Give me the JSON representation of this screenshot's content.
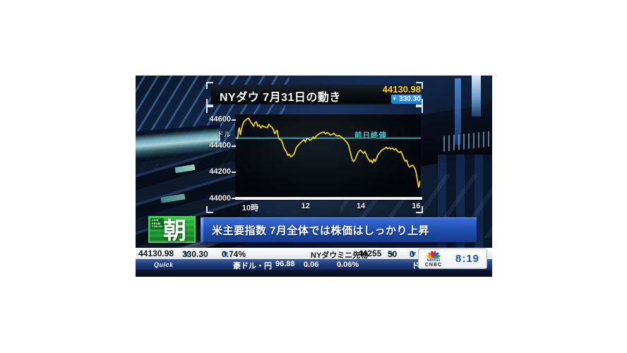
{
  "header": {
    "title": "NYダウ 7月31日の動き",
    "price": "44130.98",
    "change_value": "330.30",
    "change_dir": "down"
  },
  "icons": {
    "down": "▼",
    "up": "▲"
  },
  "chart": {
    "y_unit": "ドル",
    "prev_close_label": "前日終値"
  },
  "chart_data": {
    "type": "line",
    "title": "NYダウ 7月31日の動き",
    "ylabel": "ドル",
    "xlim": [
      9.45,
      16.17
    ],
    "ylim": [
      44000,
      44643
    ],
    "y_tick_values": [
      44600,
      44400,
      44200,
      44000
    ],
    "y_tick_labels": [
      "44600",
      "44400",
      "44200",
      "44000"
    ],
    "x_tick_values": [
      10,
      12,
      14,
      16
    ],
    "x_tick_labels": [
      "10時",
      "12",
      "14",
      "16"
    ],
    "prev_close": 44461.28,
    "grid": false,
    "legend": "none",
    "annotations": [
      {
        "text": "前日終値",
        "y": 44461.28
      }
    ],
    "series": [
      {
        "name": "NYダウ",
        "points": [
          [
            9.52,
            44458
          ],
          [
            9.55,
            44472
          ],
          [
            9.57,
            44520
          ],
          [
            9.6,
            44540
          ],
          [
            9.64,
            44488
          ],
          [
            9.68,
            44530
          ],
          [
            9.72,
            44562
          ],
          [
            9.77,
            44588
          ],
          [
            9.83,
            44600
          ],
          [
            9.88,
            44608
          ],
          [
            9.93,
            44614
          ],
          [
            9.98,
            44598
          ],
          [
            10.03,
            44580
          ],
          [
            10.08,
            44566
          ],
          [
            10.12,
            44552
          ],
          [
            10.17,
            44580
          ],
          [
            10.22,
            44586
          ],
          [
            10.27,
            44552
          ],
          [
            10.32,
            44562
          ],
          [
            10.38,
            44540
          ],
          [
            10.44,
            44556
          ],
          [
            10.5,
            44548
          ],
          [
            10.56,
            44544
          ],
          [
            10.62,
            44542
          ],
          [
            10.67,
            44568
          ],
          [
            10.72,
            44552
          ],
          [
            10.78,
            44546
          ],
          [
            10.83,
            44528
          ],
          [
            10.88,
            44495
          ],
          [
            10.93,
            44512
          ],
          [
            10.97,
            44520
          ],
          [
            11.02,
            44462
          ],
          [
            11.07,
            44450
          ],
          [
            11.12,
            44448
          ],
          [
            11.16,
            44428
          ],
          [
            11.21,
            44390
          ],
          [
            11.26,
            44372
          ],
          [
            11.31,
            44355
          ],
          [
            11.36,
            44328
          ],
          [
            11.41,
            44340
          ],
          [
            11.46,
            44318
          ],
          [
            11.51,
            44326
          ],
          [
            11.56,
            44335
          ],
          [
            11.61,
            44352
          ],
          [
            11.66,
            44388
          ],
          [
            11.71,
            44402
          ],
          [
            11.77,
            44415
          ],
          [
            11.83,
            44428
          ],
          [
            11.89,
            44440
          ],
          [
            11.94,
            44450
          ],
          [
            11.99,
            44432
          ],
          [
            12.05,
            44460
          ],
          [
            12.1,
            44456
          ],
          [
            12.16,
            44444
          ],
          [
            12.22,
            44452
          ],
          [
            12.27,
            44470
          ],
          [
            12.33,
            44458
          ],
          [
            12.39,
            44478
          ],
          [
            12.46,
            44490
          ],
          [
            12.53,
            44498
          ],
          [
            12.6,
            44505
          ],
          [
            12.66,
            44508
          ],
          [
            12.72,
            44494
          ],
          [
            12.78,
            44504
          ],
          [
            12.84,
            44496
          ],
          [
            12.9,
            44484
          ],
          [
            12.96,
            44490
          ],
          [
            13.02,
            44498
          ],
          [
            13.08,
            44486
          ],
          [
            13.14,
            44477
          ],
          [
            13.2,
            44482
          ],
          [
            13.26,
            44475
          ],
          [
            13.32,
            44466
          ],
          [
            13.38,
            44455
          ],
          [
            13.44,
            44442
          ],
          [
            13.5,
            44428
          ],
          [
            13.55,
            44410
          ],
          [
            13.6,
            44368
          ],
          [
            13.65,
            44326
          ],
          [
            13.7,
            44292
          ],
          [
            13.74,
            44282
          ],
          [
            13.79,
            44296
          ],
          [
            13.84,
            44322
          ],
          [
            13.89,
            44348
          ],
          [
            13.94,
            44362
          ],
          [
            13.99,
            44370
          ],
          [
            14.04,
            44357
          ],
          [
            14.09,
            44344
          ],
          [
            14.14,
            44360
          ],
          [
            14.19,
            44338
          ],
          [
            14.24,
            44310
          ],
          [
            14.29,
            44298
          ],
          [
            14.33,
            44282
          ],
          [
            14.37,
            44292
          ],
          [
            14.42,
            44272
          ],
          [
            14.47,
            44300
          ],
          [
            14.52,
            44284
          ],
          [
            14.57,
            44308
          ],
          [
            14.62,
            44334
          ],
          [
            14.68,
            44350
          ],
          [
            14.74,
            44366
          ],
          [
            14.8,
            44375
          ],
          [
            14.86,
            44382
          ],
          [
            14.92,
            44392
          ],
          [
            14.97,
            44380
          ],
          [
            15.03,
            44388
          ],
          [
            15.09,
            44378
          ],
          [
            15.15,
            44384
          ],
          [
            15.21,
            44372
          ],
          [
            15.27,
            44380
          ],
          [
            15.33,
            44360
          ],
          [
            15.39,
            44352
          ],
          [
            15.45,
            44360
          ],
          [
            15.5,
            44336
          ],
          [
            15.56,
            44302
          ],
          [
            15.61,
            44284
          ],
          [
            15.66,
            44292
          ],
          [
            15.71,
            44256
          ],
          [
            15.76,
            44240
          ],
          [
            15.82,
            44248
          ],
          [
            15.87,
            44254
          ],
          [
            15.92,
            44240
          ],
          [
            15.96,
            44228
          ],
          [
            16.0,
            44196
          ],
          [
            16.03,
            44162
          ],
          [
            16.06,
            44120
          ],
          [
            16.09,
            44086
          ],
          [
            16.11,
            44096
          ],
          [
            16.13,
            44131
          ]
        ]
      }
    ]
  },
  "badge": {
    "live_label": "LIVE\nFROM\nTOKYO",
    "text": "朝"
  },
  "headline": {
    "text": "米主要指数 7月全体では株価はしっかり上昇"
  },
  "ticker": {
    "row1": {
      "index_price": "44130.98",
      "index_change": "330.30",
      "index_change_pct": "0.74%",
      "futures_label": "NYダウミニ先物",
      "futures_price": "44255",
      "futures_change": "50",
      "futures_change_partial": "0"
    },
    "row2": {
      "source": "Quick",
      "pair_label": "豪ドル・円",
      "pair_price": "96.88",
      "pair_change": "0.06",
      "pair_change_pct": "0.06%",
      "next_partial": "ド"
    }
  },
  "network": {
    "name_top": "NIKKEI",
    "name_bottom": "CNBC",
    "time": "8:19"
  },
  "colors": {
    "line_yellow": "#f5d71e",
    "prev_close_cyan": "#2fc8c8",
    "price_yellow": "#ffd41e",
    "change_box_blue": "#2590e2",
    "down_triangle_blue": "#1e86e0",
    "up_triangle_red": "#e02848",
    "banner_blue": "#2250b4",
    "badge_green": "#22a43a",
    "time_blue": "#1b55c0"
  }
}
